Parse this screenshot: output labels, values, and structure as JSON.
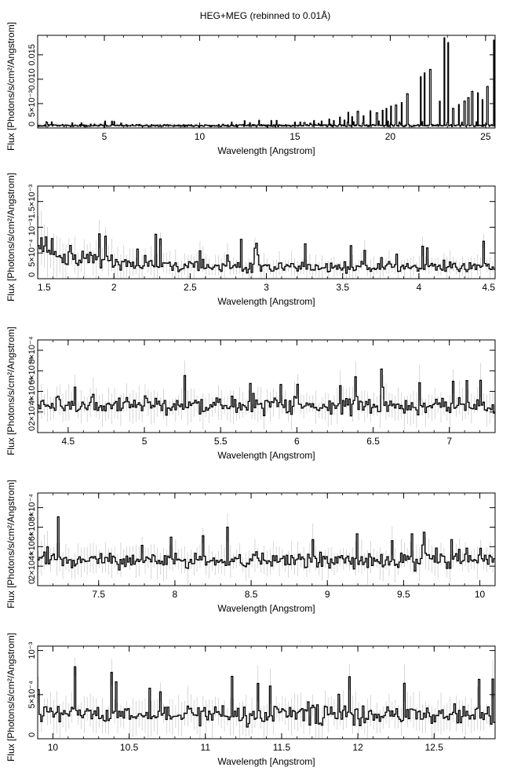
{
  "title": "HEG+MEG (rebinned to 0.01Å)",
  "chart_data": [
    {
      "type": "line",
      "xlabel": "Wavelength [Angstrom]",
      "ylabel": "Flux [Photons/s/cm²/Angstrom]",
      "xlim": [
        1.5,
        25.5
      ],
      "ylim": [
        0,
        0.019
      ],
      "xticks": [
        5,
        10,
        15,
        20,
        25
      ],
      "yticks": [
        {
          "v": 0,
          "t": "0"
        },
        {
          "v": 0.005,
          "t": "5×10⁻³"
        },
        {
          "v": 0.01,
          "t": "0.010"
        },
        {
          "v": 0.015,
          "t": "0.015"
        }
      ],
      "baseline": 0.0005,
      "noise": 0.00025,
      "lines": [
        [
          15.0,
          0.0012
        ],
        [
          15.5,
          0.0011
        ],
        [
          15.8,
          0.001
        ],
        [
          16.0,
          0.0015
        ],
        [
          16.4,
          0.0014
        ],
        [
          16.8,
          0.0018
        ],
        [
          17.05,
          0.0015
        ],
        [
          17.35,
          0.0022
        ],
        [
          17.6,
          0.0016
        ],
        [
          17.8,
          0.0032
        ],
        [
          18.0,
          0.0023
        ],
        [
          18.3,
          0.0034
        ],
        [
          18.6,
          0.0025
        ],
        [
          18.95,
          0.0035
        ],
        [
          19.3,
          0.0031
        ],
        [
          19.6,
          0.0036
        ],
        [
          19.8,
          0.004
        ],
        [
          20.05,
          0.0045
        ],
        [
          20.3,
          0.0047
        ],
        [
          20.6,
          0.0052
        ],
        [
          20.9,
          0.007
        ],
        [
          21.6,
          0.0105
        ],
        [
          21.8,
          0.0113
        ],
        [
          22.1,
          0.012
        ],
        [
          22.6,
          0.0055
        ],
        [
          22.85,
          0.0185
        ],
        [
          23.05,
          0.0175
        ],
        [
          23.3,
          0.004
        ],
        [
          23.6,
          0.0048
        ],
        [
          23.9,
          0.0055
        ],
        [
          24.1,
          0.0062
        ],
        [
          24.3,
          0.0075
        ],
        [
          24.6,
          0.0072
        ],
        [
          24.85,
          0.0058
        ],
        [
          25.1,
          0.0085
        ],
        [
          25.45,
          0.018
        ]
      ]
    },
    {
      "type": "line",
      "xlabel": "Wavelength [Angstrom]",
      "ylabel": "Flux [Photons/s/cm²/Angstrom]",
      "xlim": [
        1.5,
        4.5
      ],
      "ylim": [
        0,
        0.0018
      ],
      "xticks": [
        1.5,
        2,
        2.5,
        3,
        3.5,
        4,
        4.5
      ],
      "yticks": [
        {
          "v": 0,
          "t": "0"
        },
        {
          "v": 0.0005,
          "t": "5×10⁻⁴"
        },
        {
          "v": 0.001,
          "t": "10⁻³"
        },
        {
          "v": 0.0015,
          "t": "1.5×10⁻³"
        }
      ],
      "baseline": 0.00022,
      "noise": 0.00012
    },
    {
      "type": "line",
      "xlabel": "Wavelength [Angstrom]",
      "ylabel": "Flux [Photons/s/cm²/Angstrom]",
      "xlim": [
        4.3,
        7.3
      ],
      "ylim": [
        0,
        0.0009
      ],
      "xticks": [
        4.5,
        5,
        5.5,
        6,
        6.5,
        7
      ],
      "yticks": [
        {
          "v": 0,
          "t": "0"
        },
        {
          "v": 0.0002,
          "t": "2×10⁻⁴"
        },
        {
          "v": 0.0004,
          "t": "4×10⁻⁴"
        },
        {
          "v": 0.0006,
          "t": "6×10⁻⁴"
        },
        {
          "v": 0.0008,
          "t": "8×10⁻⁴"
        }
      ],
      "baseline": 0.00026,
      "noise": 9e-05
    },
    {
      "type": "line",
      "xlabel": "Wavelength [Angstrom]",
      "ylabel": "Flux [Photons/s/cm²/Angstrom]",
      "xlim": [
        7.1,
        10.1
      ],
      "ylim": [
        0,
        0.00095
      ],
      "xticks": [
        7.5,
        8,
        8.5,
        9,
        9.5,
        10
      ],
      "yticks": [
        {
          "v": 0,
          "t": "0"
        },
        {
          "v": 0.0002,
          "t": "2×10⁻⁴"
        },
        {
          "v": 0.0004,
          "t": "4×10⁻⁴"
        },
        {
          "v": 0.0006,
          "t": "6×10⁻⁴"
        },
        {
          "v": 0.0008,
          "t": "8×10⁻⁴"
        }
      ],
      "baseline": 0.00026,
      "noise": 9e-05
    },
    {
      "type": "line",
      "xlabel": "Wavelength [Angstrom]",
      "ylabel": "Flux [Photons/s/cm²/Angstrom]",
      "xlim": [
        9.9,
        12.9
      ],
      "ylim": [
        0,
        0.00105
      ],
      "xticks": [
        10,
        10.5,
        11,
        11.5,
        12,
        12.5
      ],
      "yticks": [
        {
          "v": 0,
          "t": "0"
        },
        {
          "v": 0.0005,
          "t": "5×10⁻⁴"
        },
        {
          "v": 0.001,
          "t": "10⁻³"
        }
      ],
      "baseline": 0.00027,
      "noise": 0.00012
    }
  ]
}
